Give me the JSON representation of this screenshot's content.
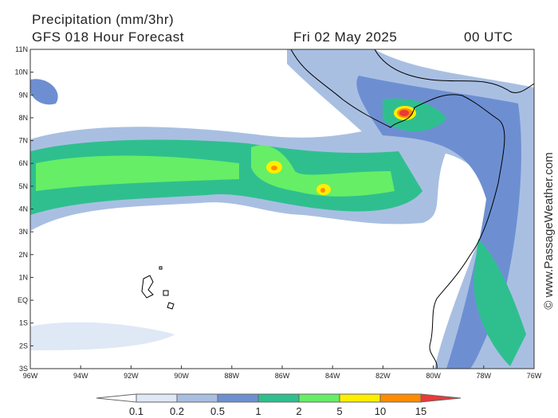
{
  "header": {
    "title": "Precipitation (mm/3hr)",
    "model": "GFS 018 Hour Forecast",
    "date": "Fri 02 May 2025",
    "time": "00 UTC"
  },
  "map": {
    "lat_labels": [
      "11N",
      "10N",
      "9N",
      "8N",
      "7N",
      "6N",
      "5N",
      "4N",
      "3N",
      "2N",
      "1N",
      "EQ",
      "1S",
      "2S",
      "3S"
    ],
    "lon_labels": [
      "96W",
      "94W",
      "92W",
      "90W",
      "88W",
      "86W",
      "84W",
      "82W",
      "80W",
      "78W",
      "76W"
    ]
  },
  "legend": {
    "labels": [
      "0.1",
      "0.2",
      "0.5",
      "1",
      "2",
      "5",
      "10",
      "15"
    ],
    "colors": [
      "#ffffff",
      "#dfe8f5",
      "#a9bfe2",
      "#6d8fd2",
      "#2fbf8f",
      "#66ee66",
      "#ffee00",
      "#ff8c00",
      "#e83a3a"
    ]
  },
  "credit": "© www.PassageWeather.com"
}
